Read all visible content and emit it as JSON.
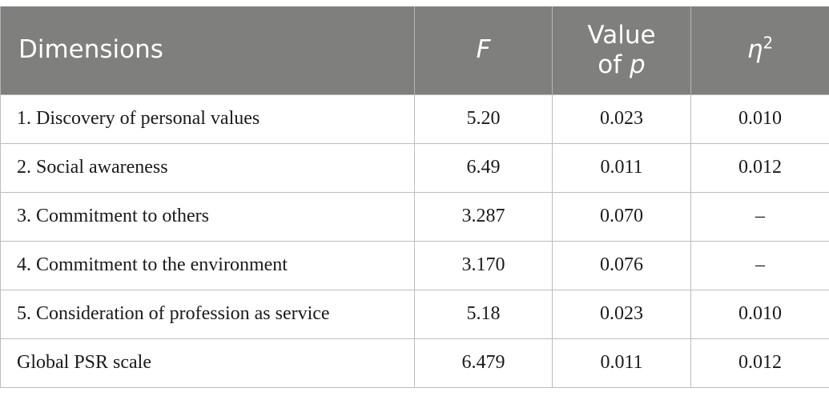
{
  "header": {
    "dimensions": "Dimensions",
    "f": "F",
    "p_prefix": "Value",
    "p_of": "of",
    "p_var": "p",
    "eta": "η",
    "eta_sup": "2"
  },
  "rows": [
    {
      "dimension": "1. Discovery of personal values",
      "f": "5.20",
      "p": "0.023",
      "eta2": "0.010"
    },
    {
      "dimension": "2. Social awareness",
      "f": "6.49",
      "p": "0.011",
      "eta2": "0.012"
    },
    {
      "dimension": "3. Commitment to others",
      "f": "3.287",
      "p": "0.070",
      "eta2": "–"
    },
    {
      "dimension": "4. Commitment to the environment",
      "f": "3.170",
      "p": "0.076",
      "eta2": "–"
    },
    {
      "dimension": "5. Consideration of profession as service",
      "f": "5.18",
      "p": "0.023",
      "eta2": "0.010"
    },
    {
      "dimension": "Global PSR scale",
      "f": "6.479",
      "p": "0.011",
      "eta2": "0.012"
    }
  ]
}
